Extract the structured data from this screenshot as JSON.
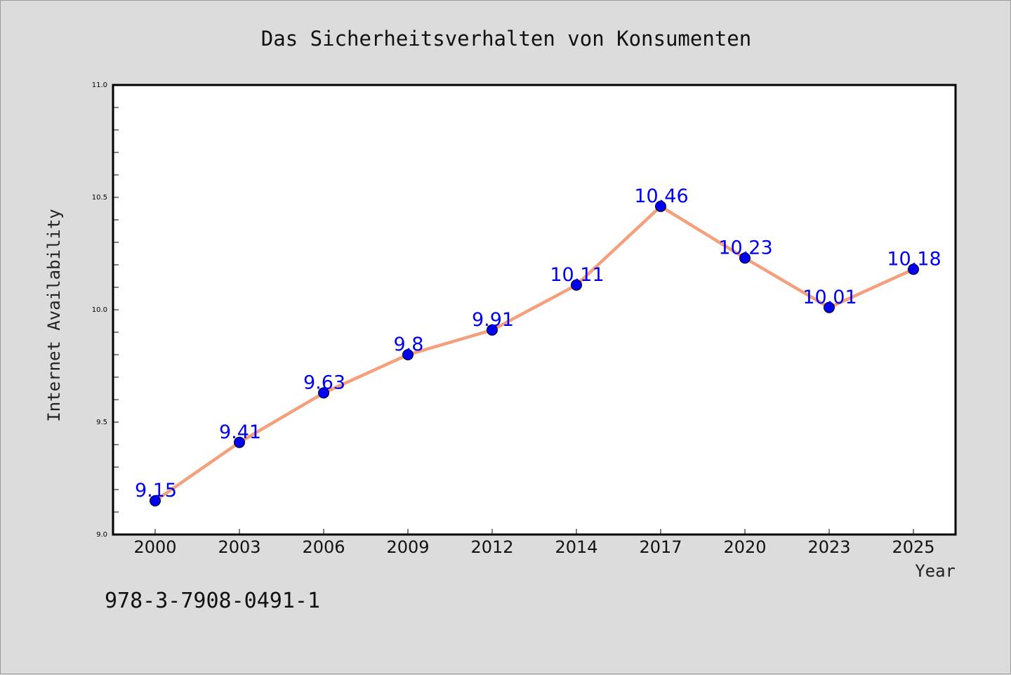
{
  "chart_data": {
    "type": "line",
    "title": "Das Sicherheitsverhalten von Konsumenten",
    "xlabel": "Year",
    "ylabel": "Internet Availability",
    "categories": [
      "2000",
      "2003",
      "2006",
      "2009",
      "2012",
      "2014",
      "2017",
      "2020",
      "2023",
      "2025"
    ],
    "series": [
      {
        "values": [
          9.15,
          9.41,
          9.63,
          9.8,
          9.91,
          10.11,
          10.46,
          10.23,
          10.01,
          10.18
        ],
        "data_labels": [
          "9.15",
          "9.41",
          "9.63",
          "9.8",
          "9.91",
          "10.11",
          "10.46",
          "10.23",
          "10.01",
          "10.18"
        ],
        "line_color": "#f4a07c",
        "marker_color": "#0000ee"
      }
    ],
    "ylim": [
      9.0,
      11.0
    ],
    "yticks": [
      "9.0",
      "9.5",
      "10.0",
      "10.5",
      "11.0"
    ],
    "grid": false,
    "legend": "none"
  },
  "footer": {
    "code": "978-3-7908-0491-1"
  },
  "colors": {
    "background": "#dcdcdc",
    "plot_background": "#ffffff",
    "line": "#f4a07c",
    "marker": "#0000ee",
    "data_label": "#0000ee"
  }
}
